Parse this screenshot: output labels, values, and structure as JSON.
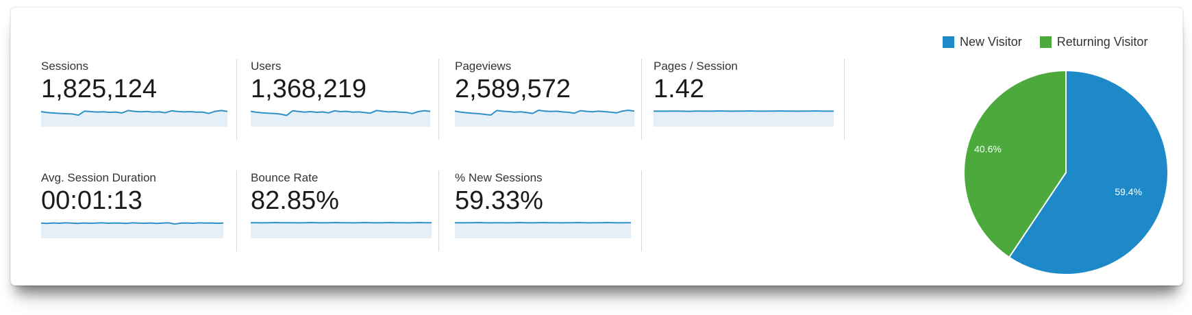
{
  "colors": {
    "spark_line": "#2f90c7",
    "spark_fill": "#e4eff8",
    "pie_blue": "#1d89c8",
    "pie_green": "#4caa3d",
    "divider": "#d6d6d6"
  },
  "metrics": [
    {
      "label": "Sessions",
      "value": "1,825,124",
      "trend": [
        0.7,
        0.63,
        0.6,
        0.57,
        0.55,
        0.53,
        0.44,
        0.74,
        0.7,
        0.67,
        0.69,
        0.65,
        0.67,
        0.6,
        0.78,
        0.72,
        0.69,
        0.71,
        0.67,
        0.69,
        0.62,
        0.76,
        0.71,
        0.68,
        0.7,
        0.66,
        0.67,
        0.57,
        0.72,
        0.78,
        0.71
      ]
    },
    {
      "label": "Users",
      "value": "1,368,219",
      "trend": [
        0.72,
        0.65,
        0.61,
        0.58,
        0.56,
        0.52,
        0.42,
        0.76,
        0.71,
        0.66,
        0.7,
        0.65,
        0.68,
        0.61,
        0.76,
        0.7,
        0.72,
        0.66,
        0.68,
        0.64,
        0.59,
        0.78,
        0.73,
        0.68,
        0.7,
        0.66,
        0.64,
        0.56,
        0.7,
        0.77,
        0.72
      ]
    },
    {
      "label": "Pageviews",
      "value": "2,589,572",
      "trend": [
        0.74,
        0.66,
        0.62,
        0.58,
        0.55,
        0.5,
        0.45,
        0.78,
        0.73,
        0.7,
        0.66,
        0.69,
        0.63,
        0.57,
        0.8,
        0.74,
        0.71,
        0.73,
        0.68,
        0.65,
        0.59,
        0.77,
        0.72,
        0.69,
        0.74,
        0.7,
        0.66,
        0.61,
        0.74,
        0.8,
        0.74
      ]
    },
    {
      "label": "Pages / Session",
      "value": "1.42",
      "trend": [
        0.73,
        0.74,
        0.73,
        0.74,
        0.74,
        0.73,
        0.72,
        0.74,
        0.74,
        0.73,
        0.74,
        0.75,
        0.74,
        0.73,
        0.74,
        0.74,
        0.75,
        0.74,
        0.73,
        0.74,
        0.74,
        0.75,
        0.74,
        0.74,
        0.73,
        0.74,
        0.74,
        0.75,
        0.74,
        0.73,
        0.74
      ]
    },
    {
      "label": "Avg. Session Duration",
      "value": "00:01:13",
      "trend": [
        0.71,
        0.69,
        0.72,
        0.7,
        0.73,
        0.71,
        0.69,
        0.72,
        0.7,
        0.71,
        0.73,
        0.7,
        0.72,
        0.71,
        0.69,
        0.73,
        0.71,
        0.7,
        0.72,
        0.69,
        0.71,
        0.73,
        0.64,
        0.71,
        0.72,
        0.7,
        0.73,
        0.71,
        0.72,
        0.7,
        0.71
      ]
    },
    {
      "label": "Bounce Rate",
      "value": "82.85%",
      "trend": [
        0.74,
        0.74,
        0.73,
        0.74,
        0.75,
        0.74,
        0.74,
        0.74,
        0.73,
        0.74,
        0.75,
        0.74,
        0.73,
        0.74,
        0.75,
        0.74,
        0.74,
        0.73,
        0.74,
        0.75,
        0.74,
        0.73,
        0.74,
        0.75,
        0.74,
        0.74,
        0.73,
        0.74,
        0.75,
        0.74,
        0.74
      ]
    },
    {
      "label": "% New Sessions",
      "value": "59.33%",
      "trend": [
        0.74,
        0.73,
        0.74,
        0.74,
        0.75,
        0.74,
        0.73,
        0.74,
        0.74,
        0.73,
        0.74,
        0.75,
        0.74,
        0.73,
        0.74,
        0.75,
        0.74,
        0.74,
        0.73,
        0.74,
        0.74,
        0.75,
        0.74,
        0.73,
        0.74,
        0.74,
        0.75,
        0.74,
        0.73,
        0.74,
        0.74
      ]
    }
  ],
  "legend": {
    "items": [
      {
        "label": "New Visitor",
        "color": "#1d89c8"
      },
      {
        "label": "Returning Visitor",
        "color": "#4caa3d"
      }
    ]
  },
  "chart_data": [
    {
      "type": "pie",
      "series": [
        {
          "name": "New Visitor",
          "value": 59.4,
          "label": "59.4%",
          "color": "#1d89c8"
        },
        {
          "name": "Returning Visitor",
          "value": 40.6,
          "label": "40.6%",
          "color": "#4caa3d"
        }
      ],
      "start_angle_deg": 0,
      "direction": "clockwise",
      "legend_position": "top-right",
      "data_labels": "inside, white text"
    },
    {
      "type": "area",
      "note": "metric sparklines; normalized 31-day trend values stored in metrics[].trend",
      "line_color": "#2f90c7",
      "fill_color": "#e4eff8"
    }
  ]
}
